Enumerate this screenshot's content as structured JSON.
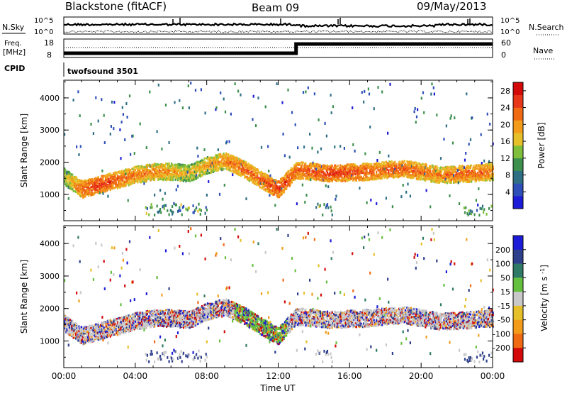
{
  "header": {
    "station": "Blackstone (fitACF)",
    "beam": "Beam 09",
    "date": "09/May/2013"
  },
  "top_panels": {
    "nsky_label": "N.Sky",
    "nsearch_label": "N.Search",
    "freq_label_1": "Freq.",
    "freq_label_2": "[MHz]",
    "nave_label": "Nave",
    "cpid_label": "CPID",
    "cpid_name": "twofsound 3501",
    "noise_ticks_left": [
      "10^5",
      "10^0"
    ],
    "noise_ticks_right": [
      "10^5",
      "10^0"
    ],
    "freq_ticks": [
      "18",
      "8"
    ],
    "nave_ticks": [
      "60",
      "0"
    ]
  },
  "chart_data": [
    {
      "type": "heatmap",
      "title": "",
      "xlabel": "Time UT",
      "ylabel": "Slant Range [km]",
      "xlim": [
        0,
        24
      ],
      "ylim": [
        180,
        4550
      ],
      "x_ticks": [
        "00:00",
        "04:00",
        "08:00",
        "12:00",
        "16:00",
        "20:00",
        "00:00"
      ],
      "y_ticks": [
        1000,
        2000,
        3000,
        4000
      ],
      "colorbar": {
        "label": "Power [dB]",
        "ticks": [
          4,
          8,
          12,
          16,
          20,
          24,
          28
        ],
        "range": [
          0,
          30
        ],
        "colors": [
          "#1c1cd8",
          "#2e4fb8",
          "#2f6f86",
          "#3c8f4c",
          "#7fbf3c",
          "#e6c02a",
          "#f39c1c",
          "#f06a14",
          "#e8361a",
          "#d40a0a"
        ]
      },
      "echo_band": [
        {
          "t": 0.0,
          "range": 1550,
          "power": 16
        },
        {
          "t": 1.0,
          "range": 1150,
          "power": 24
        },
        {
          "t": 2.0,
          "range": 1300,
          "power": 26
        },
        {
          "t": 3.0,
          "range": 1450,
          "power": 24
        },
        {
          "t": 4.0,
          "range": 1600,
          "power": 22
        },
        {
          "t": 5.0,
          "range": 1700,
          "power": 22
        },
        {
          "t": 6.0,
          "range": 1700,
          "power": 20
        },
        {
          "t": 7.0,
          "range": 1650,
          "power": 18
        },
        {
          "t": 8.0,
          "range": 1900,
          "power": 20
        },
        {
          "t": 9.0,
          "range": 2050,
          "power": 22
        },
        {
          "t": 10.0,
          "range": 1800,
          "power": 24
        },
        {
          "t": 11.0,
          "range": 1450,
          "power": 24
        },
        {
          "t": 12.0,
          "range": 1150,
          "power": 26
        },
        {
          "t": 13.0,
          "range": 1750,
          "power": 24
        },
        {
          "t": 15.0,
          "range": 1650,
          "power": 26
        },
        {
          "t": 17.0,
          "range": 1700,
          "power": 24
        },
        {
          "t": 19.0,
          "range": 1800,
          "power": 24
        },
        {
          "t": 21.0,
          "range": 1600,
          "power": 22
        },
        {
          "t": 23.0,
          "range": 1650,
          "power": 24
        },
        {
          "t": 24.0,
          "range": 1700,
          "power": 22
        }
      ]
    },
    {
      "type": "heatmap",
      "title": "",
      "xlabel": "Time UT",
      "ylabel": "Slant Range [km]",
      "xlim": [
        0,
        24
      ],
      "ylim": [
        180,
        4550
      ],
      "x_ticks": [
        "00:00",
        "04:00",
        "08:00",
        "12:00",
        "16:00",
        "20:00",
        "00:00"
      ],
      "y_ticks": [
        1000,
        2000,
        3000,
        4000
      ],
      "colorbar": {
        "label": "Velocity [m s^-1]",
        "ticks": [
          200,
          100,
          50,
          15,
          -15,
          -50,
          -100,
          -200
        ],
        "colors": [
          "#1c1cd8",
          "#2e3f8c",
          "#2f7a66",
          "#66c040",
          "#c8c8c8",
          "#e6c02a",
          "#f39c1c",
          "#f06a14",
          "#d40a0a"
        ]
      }
    }
  ]
}
